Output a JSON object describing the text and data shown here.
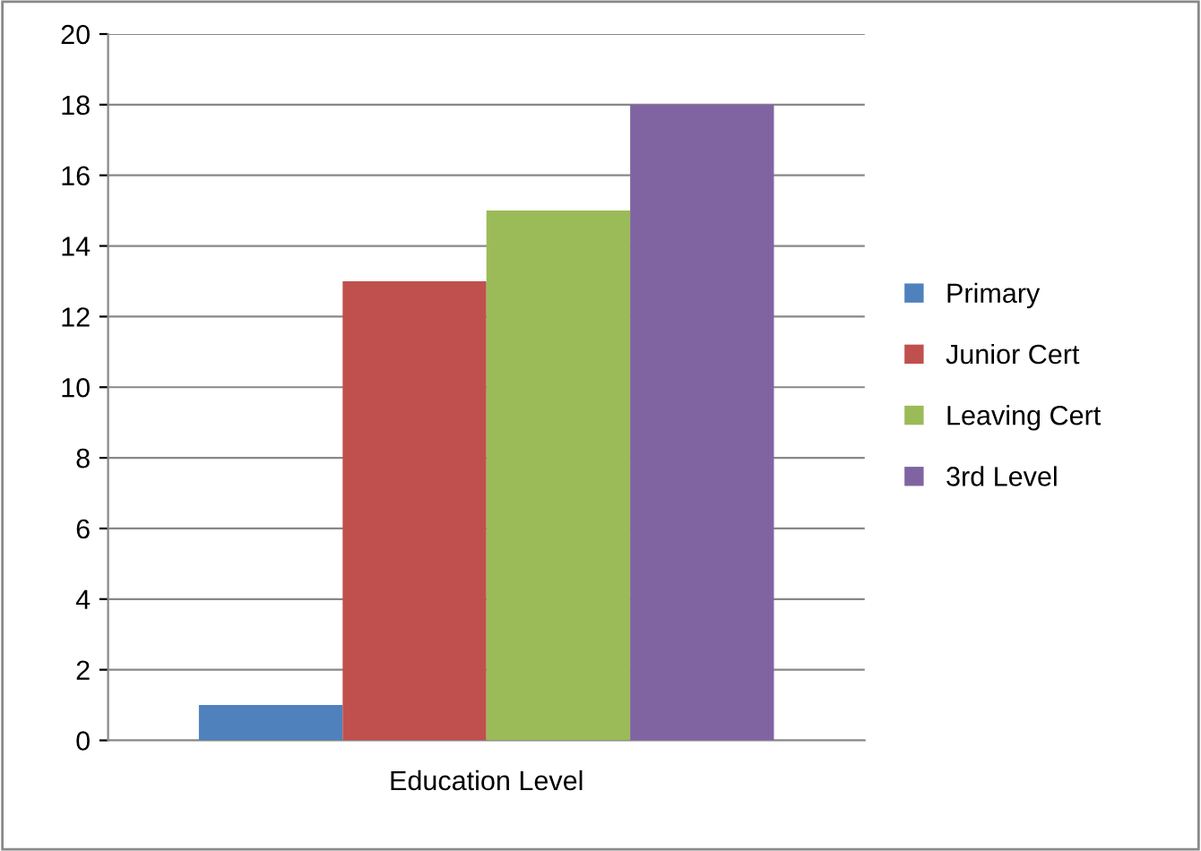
{
  "chart_data": {
    "type": "bar",
    "categories": [
      "Education Level"
    ],
    "series": [
      {
        "name": "Primary",
        "color": "#4f81bd",
        "values": [
          1
        ]
      },
      {
        "name": "Junior Cert",
        "color": "#c0504d",
        "values": [
          13
        ]
      },
      {
        "name": "Leaving Cert",
        "color": "#9bbb59",
        "values": [
          15
        ]
      },
      {
        "name": "3rd Level",
        "color": "#8064a2",
        "values": [
          18
        ]
      }
    ],
    "ylim": [
      0,
      20
    ],
    "yticks": [
      0,
      2,
      4,
      6,
      8,
      10,
      12,
      14,
      16,
      18,
      20
    ],
    "grid": "y",
    "legend": "right"
  }
}
